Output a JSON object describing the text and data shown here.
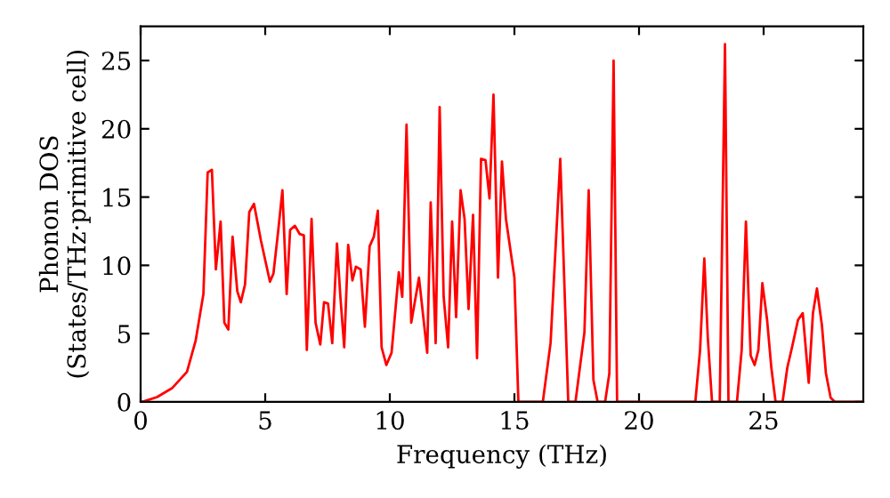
{
  "chart_data": {
    "type": "line",
    "xlabel": "Frequency (THz)",
    "ylabel": "Phonon DOS\n(States/THz·primitive cell)",
    "xlim": [
      0,
      29
    ],
    "ylim": [
      0,
      27.5
    ],
    "xticks": [
      0,
      5,
      10,
      15,
      20,
      25
    ],
    "yticks": [
      0,
      5,
      10,
      15,
      20,
      25
    ],
    "grid": false,
    "marker": "none",
    "line_style": "solid",
    "series": [
      {
        "color": "#ff0000",
        "x": [
          0.07,
          0.66,
          1.26,
          1.86,
          2.21,
          2.52,
          2.69,
          2.86,
          3.02,
          3.21,
          3.36,
          3.52,
          3.69,
          3.88,
          4.02,
          4.19,
          4.36,
          4.55,
          4.83,
          5.19,
          5.33,
          5.52,
          5.69,
          5.86,
          6.0,
          6.19,
          6.38,
          6.55,
          6.67,
          6.86,
          7.02,
          7.21,
          7.36,
          7.52,
          7.69,
          7.88,
          8.02,
          8.17,
          8.33,
          8.5,
          8.64,
          8.83,
          9.0,
          9.19,
          9.36,
          9.52,
          9.67,
          9.86,
          10.07,
          10.36,
          10.5,
          10.67,
          10.86,
          11.17,
          11.5,
          11.64,
          11.84,
          12.0,
          12.16,
          12.34,
          12.5,
          12.66,
          12.84,
          13.0,
          13.16,
          13.34,
          13.5,
          13.66,
          13.84,
          14.0,
          14.16,
          14.34,
          14.5,
          14.66,
          15.0,
          15.16,
          16.14,
          16.45,
          16.84,
          17.16,
          17.45,
          17.81,
          17.98,
          18.17,
          18.34,
          18.64,
          18.81,
          18.98,
          19.12,
          22.26,
          22.45,
          22.62,
          22.76,
          22.93,
          23.24,
          23.45,
          23.59,
          23.93,
          24.12,
          24.29,
          24.48,
          24.64,
          24.79,
          24.95,
          25.14,
          25.31,
          25.48,
          25.76,
          25.95,
          26.14,
          26.38,
          26.57,
          26.81,
          26.98,
          27.14,
          27.34,
          27.5,
          27.69,
          27.86,
          29.0
        ],
        "values": [
          0,
          0.35,
          1.0,
          2.2,
          4.5,
          7.9,
          16.8,
          17.0,
          9.7,
          13.2,
          5.8,
          5.3,
          12.1,
          8.1,
          7.3,
          8.6,
          13.9,
          14.5,
          11.8,
          8.8,
          9.4,
          12.5,
          15.5,
          7.9,
          12.6,
          12.9,
          12.3,
          12.2,
          3.8,
          13.4,
          5.8,
          4.2,
          7.3,
          7.2,
          4.3,
          11.6,
          7.6,
          4.0,
          11.5,
          8.9,
          9.9,
          9.7,
          5.5,
          11.4,
          12.1,
          14.0,
          4.0,
          2.7,
          3.6,
          9.5,
          7.7,
          20.3,
          5.8,
          9.1,
          3.6,
          14.6,
          4.3,
          21.6,
          7.7,
          4.0,
          13.2,
          6.2,
          15.5,
          13.4,
          6.8,
          13.7,
          3.2,
          17.8,
          17.7,
          14.9,
          22.5,
          9.1,
          17.6,
          13.4,
          9.1,
          0,
          0,
          4.3,
          17.8,
          0,
          0,
          5.1,
          15.5,
          1.6,
          0,
          0,
          2.1,
          25.0,
          0,
          0,
          3.8,
          10.5,
          4.7,
          0,
          0,
          26.2,
          0,
          0,
          3.8,
          13.2,
          3.4,
          2.7,
          3.8,
          8.7,
          6.0,
          2.5,
          0,
          0,
          2.5,
          4.0,
          6.0,
          6.5,
          1.4,
          6.5,
          8.3,
          5.6,
          2.1,
          0.3,
          0,
          0
        ]
      }
    ]
  }
}
